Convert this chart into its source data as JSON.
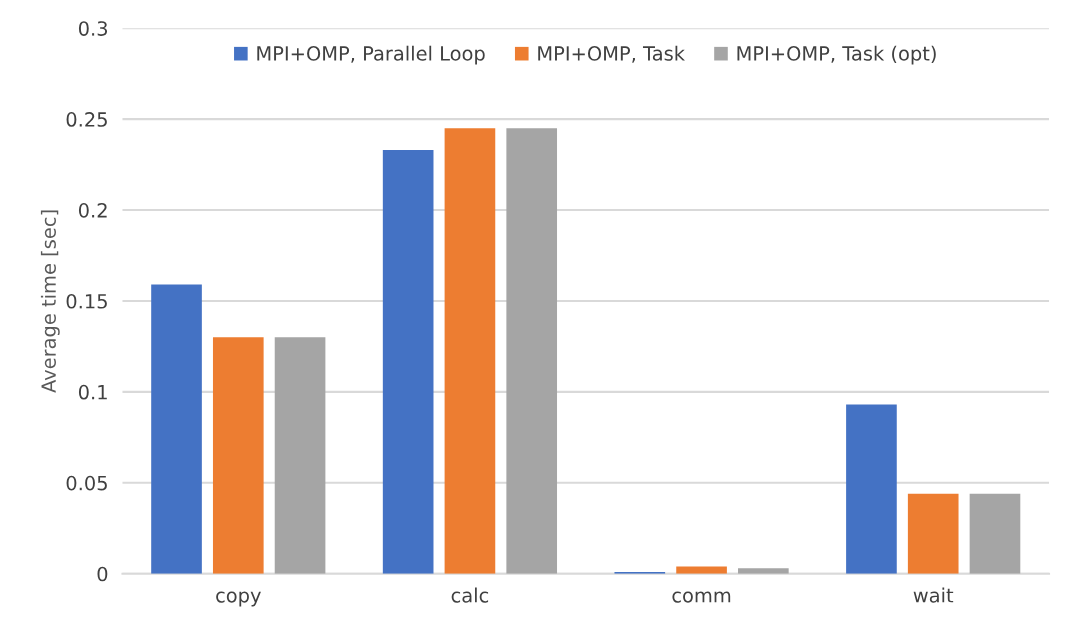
{
  "chart_data": {
    "type": "bar",
    "ylabel": "Average time [sec]",
    "categories": [
      "copy",
      "calc",
      "comm",
      "wait"
    ],
    "series": [
      {
        "name": "MPI+OMP, Parallel Loop",
        "color": "#4472c4",
        "values": [
          0.159,
          0.233,
          0.001,
          0.093
        ]
      },
      {
        "name": "MPI+OMP, Task",
        "color": "#ed7d31",
        "values": [
          0.13,
          0.245,
          0.004,
          0.044
        ]
      },
      {
        "name": "MPI+OMP, Task (opt)",
        "color": "#a5a5a5",
        "values": [
          0.13,
          0.245,
          0.003,
          0.044
        ]
      }
    ],
    "ylim": [
      0,
      0.3
    ],
    "yticks": [
      0,
      0.05,
      0.1,
      0.15,
      0.2,
      0.25,
      0.3
    ],
    "grid": "y",
    "legend": "top"
  }
}
